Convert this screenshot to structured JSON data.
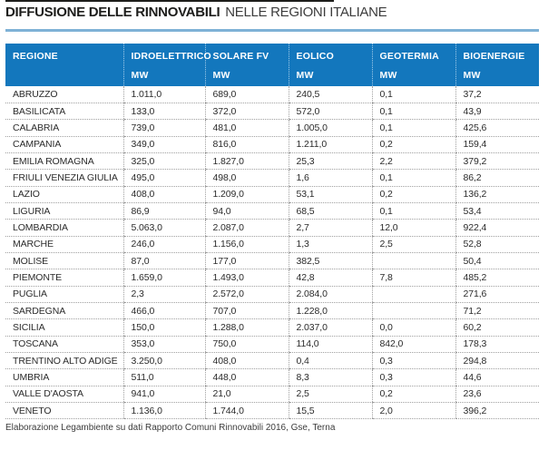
{
  "title": {
    "bold": "DIFFUSIONE DELLE RINNOVABILI",
    "regular": "NELLE REGIONI ITALIANE"
  },
  "colors": {
    "header_bg": "#1377bd",
    "title_rule_blue": "#7fb2d6",
    "top_rule": "#1d1d1b",
    "dotted_border": "#a0a0a0",
    "body_text": "#2b2b2b"
  },
  "table": {
    "columns": [
      {
        "label": "REGIONE",
        "unit": ""
      },
      {
        "label": "IDROELETTRICO",
        "unit": "MW"
      },
      {
        "label": "SOLARE FV",
        "unit": "MW"
      },
      {
        "label": "EOLICO",
        "unit": "MW"
      },
      {
        "label": "GEOTERMIA",
        "unit": "MW"
      },
      {
        "label": "BIOENERGIE",
        "unit": "MW"
      }
    ],
    "rows": [
      [
        "ABRUZZO",
        "1.011,0",
        "689,0",
        "240,5",
        "0,1",
        "37,2"
      ],
      [
        "BASILICATA",
        "133,0",
        "372,0",
        "572,0",
        "0,1",
        "43,9"
      ],
      [
        "CALABRIA",
        "739,0",
        "481,0",
        "1.005,0",
        "0,1",
        "425,6"
      ],
      [
        "CAMPANIA",
        "349,0",
        "816,0",
        "1.211,0",
        "0,2",
        "159,4"
      ],
      [
        "EMILIA ROMAGNA",
        "325,0",
        "1.827,0",
        "25,3",
        "2,2",
        "379,2"
      ],
      [
        "FRIULI VENEZIA GIULIA",
        "495,0",
        "498,0",
        "1,6",
        "0,1",
        "86,2"
      ],
      [
        "LAZIO",
        "408,0",
        "1.209,0",
        "53,1",
        "0,2",
        "136,2"
      ],
      [
        "LIGURIA",
        "86,9",
        "94,0",
        "68,5",
        "0,1",
        "53,4"
      ],
      [
        "LOMBARDIA",
        "5.063,0",
        "2.087,0",
        "2,7",
        "12,0",
        "922,4"
      ],
      [
        "MARCHE",
        "246,0",
        "1.156,0",
        "1,3",
        "2,5",
        "52,8"
      ],
      [
        "MOLISE",
        "87,0",
        "177,0",
        "382,5",
        "",
        "50,4"
      ],
      [
        "PIEMONTE",
        "1.659,0",
        "1.493,0",
        "42,8",
        "7,8",
        "485,2"
      ],
      [
        "PUGLIA",
        "2,3",
        "2.572,0",
        "2.084,0",
        "",
        "271,6"
      ],
      [
        "SARDEGNA",
        "466,0",
        "707,0",
        "1.228,0",
        "",
        "71,2"
      ],
      [
        "SICILIA",
        "150,0",
        "1.288,0",
        "2.037,0",
        "0,0",
        "60,2"
      ],
      [
        "TOSCANA",
        "353,0",
        "750,0",
        "114,0",
        "842,0",
        "178,3"
      ],
      [
        "TRENTINO ALTO ADIGE",
        "3.250,0",
        "408,0",
        "0,4",
        "0,3",
        "294,8"
      ],
      [
        "UMBRIA",
        "511,0",
        "448,0",
        "8,3",
        "0,3",
        "44,6"
      ],
      [
        "VALLE D'AOSTA",
        "941,0",
        "21,0",
        "2,5",
        "0,2",
        "23,6"
      ],
      [
        "VENETO",
        "1.136,0",
        "1.744,0",
        "15,5",
        "2,0",
        "396,2"
      ]
    ]
  },
  "footer": {
    "source": "Elaborazione Legambiente su dati Rapporto Comuni Rinnovabili 2016, Gse, Terna"
  }
}
